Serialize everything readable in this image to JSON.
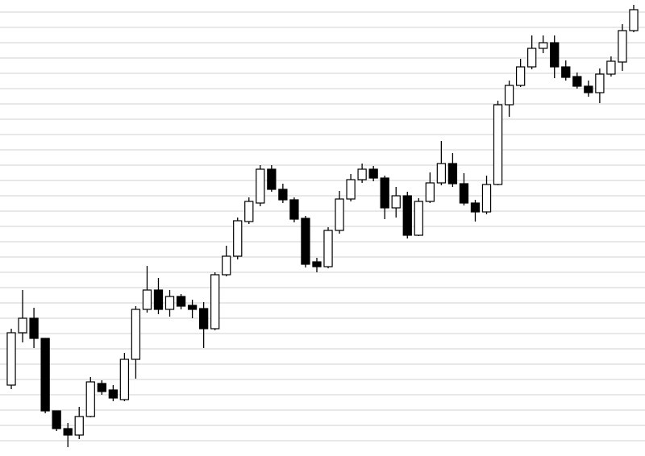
{
  "chart_data": {
    "type": "candlestick",
    "ylim": [
      0,
      566
    ],
    "yticks": [
      19,
      38,
      57,
      76,
      95,
      114,
      133,
      152,
      171,
      190,
      209,
      228,
      247,
      266,
      285,
      304,
      323,
      342,
      361,
      380,
      399,
      418,
      437,
      456,
      475,
      494,
      513,
      532,
      551
    ],
    "grid": true,
    "grid_color": "#d0d0d0",
    "up_color": "#ffffff",
    "down_color": "#000000",
    "edge_color": "#000000",
    "series": [
      {
        "open": [
          88,
          153,
          171,
          146,
          56,
          34,
          26,
          49,
          90,
          82,
          70,
          120,
          182,
          206,
          182,
          198,
          187,
          183,
          158,
          225,
          248,
          291,
          314,
          356,
          331,
          318,
          295,
          241,
          235,
          280,
          319,
          343,
          356,
          345,
          308,
          323,
          274,
          316,
          339,
          363,
          338,
          314,
          303,
          337,
          436,
          460,
          483,
          506,
          513,
          483,
          471,
          459,
          451,
          474,
          489,
          528
        ],
        "high": [
          158,
          206,
          184,
          146,
          56,
          41,
          61,
          98,
          94,
          88,
          128,
          186,
          236,
          221,
          206,
          201,
          194,
          191,
          228,
          261,
          296,
          321,
          361,
          361,
          338,
          321,
          298,
          246,
          284,
          329,
          350,
          363,
          360,
          348,
          334,
          328,
          320,
          352,
          391,
          376,
          351,
          318,
          348,
          441,
          466,
          493,
          522,
          522,
          522,
          491,
          476,
          466,
          481,
          496,
          536,
          560
        ],
        "low": [
          83,
          141,
          134,
          53,
          31,
          11,
          21,
          48,
          76,
          68,
          68,
          96,
          178,
          176,
          173,
          182,
          171,
          134,
          156,
          223,
          244,
          288,
          310,
          328,
          314,
          290,
          234,
          228,
          233,
          276,
          316,
          339,
          341,
          294,
          296,
          270,
          273,
          314,
          336,
          334,
          311,
          291,
          300,
          336,
          421,
          458,
          480,
          500,
          469,
          466,
          456,
          446,
          438,
          471,
          478,
          526
        ],
        "close": [
          153,
          171,
          146,
          56,
          34,
          26,
          49,
          92,
          80,
          72,
          120,
          182,
          206,
          182,
          198,
          186,
          182,
          158,
          225,
          248,
          292,
          316,
          356,
          331,
          318,
          294,
          238,
          235,
          280,
          319,
          343,
          356,
          345,
          308,
          323,
          274,
          316,
          339,
          363,
          338,
          314,
          303,
          337,
          436,
          460,
          483,
          506,
          513,
          483,
          470,
          459,
          451,
          474,
          490,
          528,
          554
        ]
      }
    ]
  }
}
